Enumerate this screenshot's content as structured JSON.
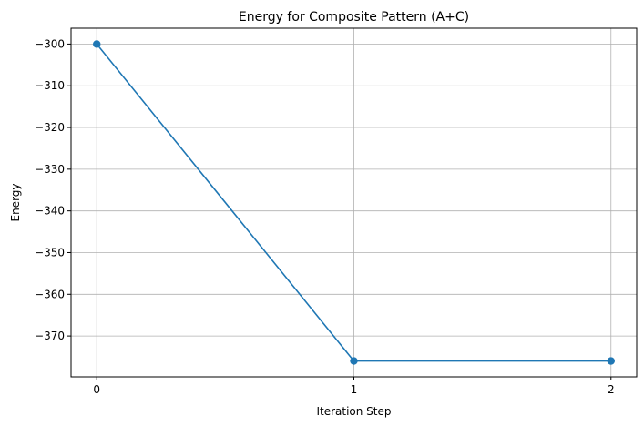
{
  "chart_data": {
    "type": "line",
    "title": "Energy for Composite Pattern (A+C)",
    "xlabel": "Iteration Step",
    "ylabel": "Energy",
    "x": [
      0,
      1,
      2
    ],
    "series": [
      {
        "values": [
          -300,
          -376,
          -376
        ]
      }
    ],
    "xlim": [
      -0.1,
      2.1
    ],
    "ylim": [
      -379.8,
      -296.2
    ],
    "xticks": [
      0,
      1,
      2
    ],
    "xtick_labels": [
      "0",
      "1",
      "2"
    ],
    "yticks": [
      -300,
      -310,
      -320,
      -330,
      -340,
      -350,
      -360,
      -370
    ],
    "ytick_labels": [
      "−300",
      "−310",
      "−320",
      "−330",
      "−340",
      "−350",
      "−360",
      "−370"
    ],
    "grid": true,
    "marker": "circle",
    "colors": {
      "series": "#1f77b4",
      "grid": "#b0b0b0",
      "axes": "#000000"
    }
  }
}
